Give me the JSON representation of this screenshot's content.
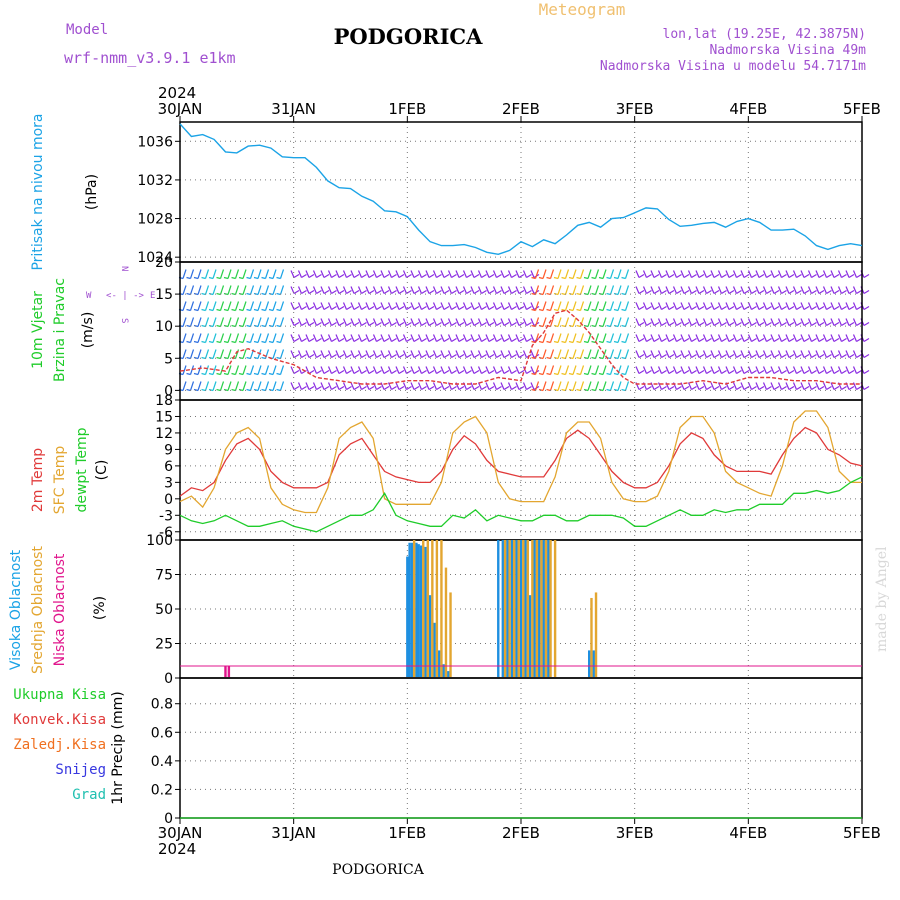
{
  "header": {
    "model_label": "Model",
    "model_name": "wrf-nmm_v3.9.1  e1km",
    "station": "PODGORICA",
    "product": "Meteogram",
    "lonlat": "lon,lat (19.25E, 42.3875N)",
    "elevation": "Nadmorska Visina 49m",
    "model_elevation": "Nadmorska Visina u modelu 54.7171m",
    "year_top": "2024",
    "year_bottom": "2024",
    "footer_station": "PODGORICA",
    "credit": "made by Angel"
  },
  "time_axis": {
    "labels": [
      "30JAN",
      "31JAN",
      "1FEB",
      "2FEB",
      "3FEB",
      "4FEB",
      "5FEB"
    ]
  },
  "panel_labels": {
    "pressure": [
      "Pritisak na nivou mora"
    ],
    "pressure_unit": "(hPa)",
    "wind": [
      "10m Vjetar",
      "Brzina i Pravac"
    ],
    "wind_unit": "(m/s)",
    "compass": {
      "w": "W",
      "e": "E",
      "n": "N",
      "s": "S",
      "arrows": "<- | ->"
    },
    "temp": [
      "2m Temp",
      "SFC Temp",
      "dewpt Temp"
    ],
    "temp_unit": "(C)",
    "cloud": [
      "Visoka Oblacnost",
      "Srednja Oblacnost",
      "Niska Oblacnost"
    ],
    "cloud_unit": "(%)",
    "precip_legend": [
      "Ukupna Kisa",
      "Konvek.Kisa",
      "Zaledj.Kisa",
      "Snijeg",
      "Grad"
    ],
    "precip_axis": "1hr Precip (mm)"
  },
  "colors": {
    "pressure": "#1ba3e6",
    "temp2m": "#e03a3a",
    "sfc": "#e3a630",
    "dew": "#1fcc2a",
    "high_cloud": "#1e8fe0",
    "mid_cloud": "#e3a630",
    "low_cloud": "#e0158c",
    "model": "#a050d0",
    "product": "#f0c070",
    "ukupna": "#1fcc2a",
    "konvek": "#e03a3a",
    "zaledj": "#f07020",
    "snijeg": "#3838e0",
    "grad": "#20c0b0"
  },
  "chart_data": [
    {
      "type": "line",
      "ylabel": "(hPa)",
      "ylim": [
        1023.5,
        1038
      ],
      "yticks": [
        1024,
        1028,
        1032,
        1036
      ],
      "series": [
        {
          "x": [
            0,
            0.1,
            0.2,
            0.3,
            0.4,
            0.5,
            0.6,
            0.7,
            0.8,
            0.9,
            1.0,
            1.1,
            1.2,
            1.3,
            1.4,
            1.5,
            1.6,
            1.7,
            1.8,
            1.9,
            2.0,
            2.1,
            2.2,
            2.3,
            2.4,
            2.5,
            2.6,
            2.7,
            2.8,
            2.9,
            3.0,
            3.1,
            3.2,
            3.3,
            3.4,
            3.5,
            3.6,
            3.7,
            3.8,
            3.9,
            4.0,
            4.1,
            4.2,
            4.3,
            4.4,
            4.5,
            4.6,
            4.7,
            4.8,
            4.9,
            5.0,
            5.1,
            5.2,
            5.3,
            5.4,
            5.5,
            5.6,
            5.7,
            5.8,
            5.9,
            6.0
          ],
          "values": [
            1037.8,
            1036.5,
            1036.7,
            1036.2,
            1034.9,
            1034.8,
            1035.5,
            1035.6,
            1035.3,
            1034.4,
            1034.3,
            1034.3,
            1033.3,
            1031.9,
            1031.2,
            1031.1,
            1030.3,
            1029.8,
            1028.8,
            1028.7,
            1028.2,
            1026.8,
            1025.6,
            1025.2,
            1025.2,
            1025.3,
            1025.0,
            1024.5,
            1024.3,
            1024.7,
            1025.6,
            1025.1,
            1025.8,
            1025.4,
            1026.3,
            1027.3,
            1027.6,
            1027.1,
            1028.0,
            1028.1,
            1028.6,
            1029.1,
            1029.0,
            1027.9,
            1027.2,
            1027.3,
            1027.5,
            1027.6,
            1027.1,
            1027.7,
            1028.0,
            1027.6,
            1026.8,
            1026.8,
            1026.9,
            1026.2,
            1025.2,
            1024.8,
            1025.2,
            1025.4,
            1025.2
          ]
        }
      ]
    },
    {
      "type": "line",
      "ylabel": "(m/s)",
      "ylim": [
        -1.5,
        20
      ],
      "yticks": [
        0,
        5,
        10,
        15,
        20
      ],
      "series": [
        {
          "name": "speed",
          "x": [
            0,
            0.2,
            0.4,
            0.5,
            0.6,
            0.8,
            1.0,
            1.2,
            1.4,
            1.6,
            1.8,
            2.0,
            2.2,
            2.4,
            2.6,
            2.8,
            3.0,
            3.1,
            3.2,
            3.3,
            3.4,
            3.5,
            3.6,
            3.7,
            3.8,
            3.9,
            4.0,
            4.2,
            4.4,
            4.6,
            4.8,
            5.0,
            5.2,
            5.4,
            5.6,
            5.8,
            6.0
          ],
          "values": [
            3,
            3.5,
            3,
            6,
            6.5,
            5,
            4,
            2,
            1.5,
            1,
            1,
            1.5,
            1.5,
            1,
            1,
            2,
            1.5,
            7,
            9,
            12,
            12.5,
            11,
            9,
            6.5,
            4,
            2,
            1,
            1,
            1,
            1.5,
            1,
            2,
            2,
            1.5,
            1.5,
            1,
            1
          ]
        }
      ]
    },
    {
      "type": "line",
      "ylabel": "(C)",
      "ylim": [
        -7.5,
        18
      ],
      "yticks": [
        -6,
        -3,
        0,
        3,
        6,
        9,
        12,
        15,
        18
      ],
      "x": [
        0,
        0.1,
        0.2,
        0.3,
        0.4,
        0.5,
        0.6,
        0.7,
        0.8,
        0.9,
        1.0,
        1.1,
        1.2,
        1.3,
        1.4,
        1.5,
        1.6,
        1.7,
        1.8,
        1.9,
        2.0,
        2.1,
        2.2,
        2.3,
        2.4,
        2.5,
        2.6,
        2.7,
        2.8,
        2.9,
        3.0,
        3.1,
        3.2,
        3.3,
        3.4,
        3.5,
        3.6,
        3.7,
        3.8,
        3.9,
        4.0,
        4.1,
        4.2,
        4.3,
        4.4,
        4.5,
        4.6,
        4.7,
        4.8,
        4.9,
        5.0,
        5.1,
        5.2,
        5.3,
        5.4,
        5.5,
        5.6,
        5.7,
        5.8,
        5.9,
        6.0
      ],
      "series": [
        {
          "name": "2m Temp",
          "values": [
            0.5,
            2,
            1.5,
            3,
            7,
            10,
            11,
            9,
            5,
            3,
            2,
            2,
            2,
            3,
            8,
            10,
            11,
            8,
            5,
            4,
            3.5,
            3,
            3,
            5,
            9,
            11.5,
            10,
            7,
            5,
            4.5,
            4,
            4,
            4,
            7,
            11,
            12.5,
            11,
            8,
            5,
            3,
            2,
            2,
            3,
            6,
            10,
            12,
            11,
            8,
            6,
            5,
            5,
            5,
            4.5,
            8,
            11,
            13,
            12,
            9,
            8,
            6.5,
            6
          ]
        },
        {
          "name": "SFC Temp",
          "values": [
            -0.5,
            0.5,
            -1.5,
            2,
            9,
            12,
            13,
            11,
            2,
            -1,
            -2,
            -2.5,
            -2.5,
            2,
            11,
            13,
            14,
            11,
            0,
            -1,
            -1,
            -1,
            -1,
            3,
            12,
            14,
            15,
            12,
            3,
            0,
            -0.5,
            -0.5,
            -0.5,
            4,
            12,
            14,
            14,
            11,
            3,
            0,
            -0.5,
            -0.5,
            0.5,
            5,
            13,
            15,
            15,
            12,
            5,
            3,
            2,
            1,
            0.5,
            6,
            14,
            16,
            16,
            13,
            5,
            3,
            3
          ]
        },
        {
          "name": "dewpt Temp",
          "values": [
            -3,
            -4,
            -4.5,
            -4,
            -3,
            -4,
            -5,
            -5,
            -4.5,
            -4,
            -5,
            -5.5,
            -6,
            -5,
            -4,
            -3,
            -3,
            -2,
            1,
            -3,
            -4,
            -4.5,
            -5,
            -5,
            -3,
            -3.5,
            -2,
            -4,
            -3,
            -3.5,
            -4,
            -4,
            -3,
            -3,
            -4,
            -4,
            -3,
            -3,
            -3,
            -3.5,
            -5,
            -5,
            -4,
            -3,
            -2,
            -3,
            -3,
            -2,
            -2.5,
            -2,
            -2,
            -1,
            -1,
            -1,
            1,
            1,
            1.5,
            1,
            1.5,
            3,
            4
          ]
        }
      ]
    },
    {
      "type": "bar",
      "ylabel": "(%)",
      "ylim": [
        0,
        100
      ],
      "yticks": [
        0,
        25,
        50,
        75,
        100
      ],
      "series": [
        {
          "name": "Visoka Oblacnost",
          "x": [
            2.0,
            2.02,
            2.04,
            2.08,
            2.1,
            2.12,
            2.16,
            2.2,
            2.24,
            2.28,
            2.32,
            2.36,
            2.8,
            2.84,
            2.88,
            2.92,
            2.96,
            3.0,
            3.04,
            3.08,
            3.12,
            3.16,
            3.2,
            3.24,
            3.6,
            3.64
          ],
          "values": [
            88,
            98,
            98,
            98,
            97,
            96,
            95,
            60,
            40,
            20,
            10,
            5,
            100,
            100,
            100,
            100,
            100,
            100,
            100,
            60,
            100,
            100,
            100,
            100,
            20,
            20
          ]
        },
        {
          "name": "Srednja Oblacnost",
          "x": [
            2.06,
            2.14,
            2.18,
            2.22,
            2.26,
            2.3,
            2.34,
            2.38,
            2.86,
            2.9,
            2.94,
            2.98,
            3.02,
            3.06,
            3.1,
            3.14,
            3.18,
            3.22,
            3.26,
            3.3,
            3.62,
            3.66
          ],
          "values": [
            100,
            100,
            100,
            100,
            100,
            100,
            80,
            62,
            100,
            100,
            100,
            100,
            100,
            100,
            100,
            100,
            100,
            100,
            100,
            100,
            58,
            62
          ]
        },
        {
          "name": "Niska Oblacnost",
          "x": [
            0.4,
            0.43
          ],
          "values": [
            9,
            9
          ]
        }
      ]
    },
    {
      "type": "line",
      "ylabel": "1hr Precip (mm)",
      "ylim": [
        0,
        0.98
      ],
      "yticks": [
        0,
        0.2,
        0.4,
        0.6,
        0.8
      ],
      "series": [
        {
          "name": "Ukupna Kisa",
          "x": [
            0,
            6
          ],
          "values": [
            0,
            0
          ]
        }
      ]
    }
  ]
}
